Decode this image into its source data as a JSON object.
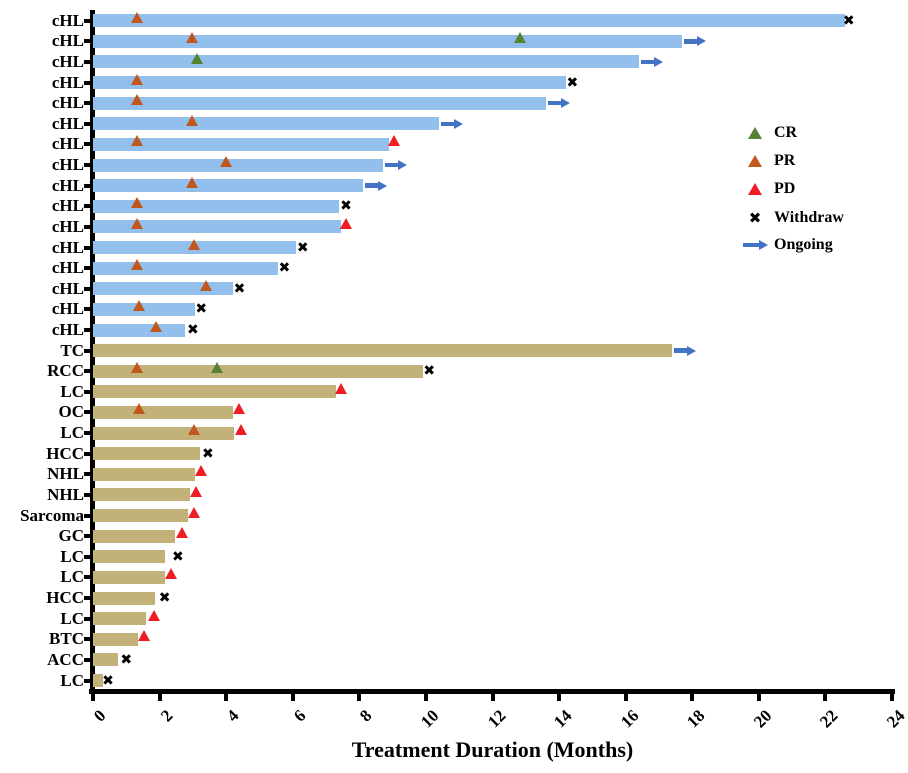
{
  "chart_data": {
    "type": "bar",
    "subtype": "swimmer-plot",
    "title": "",
    "xlabel": "Treatment Duration (Months)",
    "ylabel": "",
    "xlim": [
      0,
      24
    ],
    "xticks": [
      0,
      2,
      4,
      6,
      8,
      10,
      12,
      14,
      16,
      18,
      20,
      22,
      24
    ],
    "grid": false,
    "legend_position": "right-upper",
    "legend": [
      {
        "label": "CR",
        "marker": "CR"
      },
      {
        "label": "PR",
        "marker": "PR"
      },
      {
        "label": "PD",
        "marker": "PD"
      },
      {
        "label": "Withdraw",
        "marker": "Withdraw"
      },
      {
        "label": "Ongoing",
        "marker": "Ongoing"
      }
    ],
    "colors": {
      "chl_bar": "#92bfec",
      "other_bar": "#c2b178",
      "cr": "#568234",
      "pr": "#c0571c",
      "pd": "#ee1c23",
      "withdraw": "#000000",
      "ongoing": "#4472c4",
      "axis": "#000000"
    },
    "rows": [
      {
        "label": "cHL",
        "duration": 22.6,
        "ongoing": false,
        "markers": [
          {
            "type": "PR",
            "x": 1.35
          },
          {
            "type": "Withdraw",
            "x": 22.7
          }
        ]
      },
      {
        "label": "cHL",
        "duration": 17.7,
        "ongoing": true,
        "markers": [
          {
            "type": "PR",
            "x": 3.0
          },
          {
            "type": "CR",
            "x": 12.85
          }
        ]
      },
      {
        "label": "cHL",
        "duration": 16.4,
        "ongoing": true,
        "markers": [
          {
            "type": "CR",
            "x": 3.15
          }
        ]
      },
      {
        "label": "cHL",
        "duration": 14.2,
        "ongoing": false,
        "markers": [
          {
            "type": "PR",
            "x": 1.35
          },
          {
            "type": "Withdraw",
            "x": 14.4
          }
        ]
      },
      {
        "label": "cHL",
        "duration": 13.6,
        "ongoing": true,
        "markers": [
          {
            "type": "PR",
            "x": 1.35
          }
        ]
      },
      {
        "label": "cHL",
        "duration": 10.4,
        "ongoing": true,
        "markers": [
          {
            "type": "PR",
            "x": 3.0
          }
        ]
      },
      {
        "label": "cHL",
        "duration": 8.9,
        "ongoing": false,
        "markers": [
          {
            "type": "PR",
            "x": 1.35
          },
          {
            "type": "PD",
            "x": 9.05
          }
        ]
      },
      {
        "label": "cHL",
        "duration": 8.7,
        "ongoing": true,
        "markers": [
          {
            "type": "PR",
            "x": 4.0
          }
        ]
      },
      {
        "label": "cHL",
        "duration": 8.1,
        "ongoing": true,
        "markers": [
          {
            "type": "PR",
            "x": 3.0
          }
        ]
      },
      {
        "label": "cHL",
        "duration": 7.4,
        "ongoing": false,
        "markers": [
          {
            "type": "PR",
            "x": 1.35
          },
          {
            "type": "Withdraw",
            "x": 7.6
          }
        ]
      },
      {
        "label": "cHL",
        "duration": 7.45,
        "ongoing": false,
        "markers": [
          {
            "type": "PR",
            "x": 1.35
          },
          {
            "type": "PD",
            "x": 7.6
          }
        ]
      },
      {
        "label": "cHL",
        "duration": 6.1,
        "ongoing": false,
        "markers": [
          {
            "type": "PR",
            "x": 3.05
          },
          {
            "type": "Withdraw",
            "x": 6.3
          }
        ]
      },
      {
        "label": "cHL",
        "duration": 5.55,
        "ongoing": false,
        "markers": [
          {
            "type": "PR",
            "x": 1.35
          },
          {
            "type": "Withdraw",
            "x": 5.75
          }
        ]
      },
      {
        "label": "cHL",
        "duration": 4.2,
        "ongoing": false,
        "markers": [
          {
            "type": "PR",
            "x": 3.4
          },
          {
            "type": "Withdraw",
            "x": 4.4
          }
        ]
      },
      {
        "label": "cHL",
        "duration": 3.05,
        "ongoing": false,
        "markers": [
          {
            "type": "PR",
            "x": 1.4
          },
          {
            "type": "Withdraw",
            "x": 3.25
          }
        ]
      },
      {
        "label": "cHL",
        "duration": 2.75,
        "ongoing": false,
        "markers": [
          {
            "type": "PR",
            "x": 1.9
          },
          {
            "type": "Withdraw",
            "x": 3.0
          }
        ]
      },
      {
        "label": "TC",
        "duration": 17.4,
        "ongoing": true,
        "markers": []
      },
      {
        "label": "RCC",
        "duration": 9.9,
        "ongoing": false,
        "markers": [
          {
            "type": "PR",
            "x": 1.35
          },
          {
            "type": "CR",
            "x": 3.75
          },
          {
            "type": "Withdraw",
            "x": 10.1
          }
        ]
      },
      {
        "label": "LC",
        "duration": 7.3,
        "ongoing": false,
        "markers": [
          {
            "type": "PD",
            "x": 7.45
          }
        ]
      },
      {
        "label": "OC",
        "duration": 4.2,
        "ongoing": false,
        "markers": [
          {
            "type": "PR",
            "x": 1.4
          },
          {
            "type": "PD",
            "x": 4.4
          }
        ]
      },
      {
        "label": "LC",
        "duration": 4.25,
        "ongoing": false,
        "markers": [
          {
            "type": "PR",
            "x": 3.05
          },
          {
            "type": "PD",
            "x": 4.45
          }
        ]
      },
      {
        "label": "HCC",
        "duration": 3.2,
        "ongoing": false,
        "markers": [
          {
            "type": "Withdraw",
            "x": 3.45
          }
        ]
      },
      {
        "label": "NHL",
        "duration": 3.05,
        "ongoing": false,
        "markers": [
          {
            "type": "PD",
            "x": 3.25
          }
        ]
      },
      {
        "label": "NHL",
        "duration": 2.9,
        "ongoing": false,
        "markers": [
          {
            "type": "PD",
            "x": 3.1
          }
        ]
      },
      {
        "label": "Sarcoma",
        "duration": 2.85,
        "ongoing": false,
        "markers": [
          {
            "type": "PD",
            "x": 3.05
          }
        ]
      },
      {
        "label": "GC",
        "duration": 2.45,
        "ongoing": false,
        "markers": [
          {
            "type": "PD",
            "x": 2.7
          }
        ]
      },
      {
        "label": "LC",
        "duration": 2.15,
        "ongoing": false,
        "markers": [
          {
            "type": "Withdraw",
            "x": 2.55
          }
        ]
      },
      {
        "label": "LC",
        "duration": 2.15,
        "ongoing": false,
        "markers": [
          {
            "type": "PD",
            "x": 2.35
          }
        ]
      },
      {
        "label": "HCC",
        "duration": 1.85,
        "ongoing": false,
        "markers": [
          {
            "type": "Withdraw",
            "x": 2.15
          }
        ]
      },
      {
        "label": "LC",
        "duration": 1.6,
        "ongoing": false,
        "markers": [
          {
            "type": "PD",
            "x": 1.85
          }
        ]
      },
      {
        "label": "BTC",
        "duration": 1.35,
        "ongoing": false,
        "markers": [
          {
            "type": "PD",
            "x": 1.55
          }
        ]
      },
      {
        "label": "ACC",
        "duration": 0.75,
        "ongoing": false,
        "markers": [
          {
            "type": "Withdraw",
            "x": 1.0
          }
        ]
      },
      {
        "label": "LC",
        "duration": 0.3,
        "ongoing": false,
        "markers": [
          {
            "type": "Withdraw",
            "x": 0.45
          }
        ]
      }
    ]
  }
}
